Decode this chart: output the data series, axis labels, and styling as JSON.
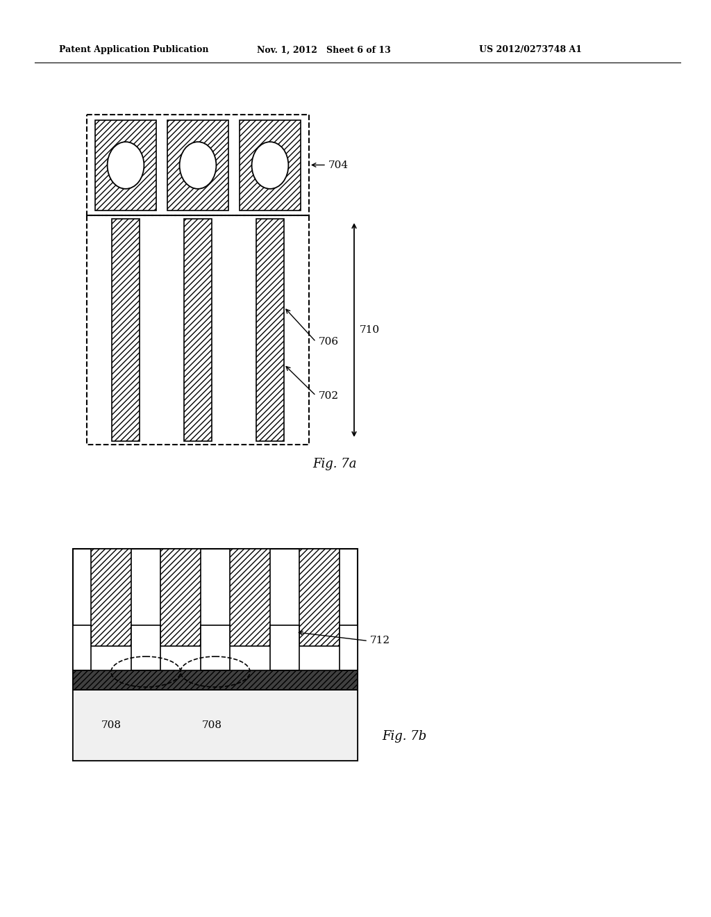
{
  "background_color": "#ffffff",
  "header_left": "Patent Application Publication",
  "header_mid": "Nov. 1, 2012   Sheet 6 of 13",
  "header_right": "US 2012/0273748 A1",
  "fig7a_label": "Fig. 7a",
  "fig7b_label": "Fig. 7b",
  "label_704": "704",
  "label_710": "710",
  "label_706": "706",
  "label_702": "702",
  "label_712": "712",
  "label_708a": "708",
  "label_708b": "708",
  "hatch_color": "#000000",
  "line_color": "#000000"
}
